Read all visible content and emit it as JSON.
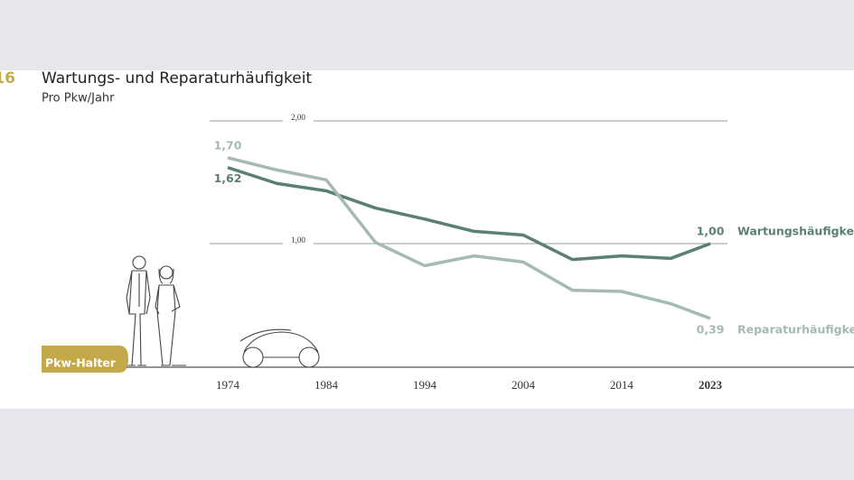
{
  "chart_data": {
    "type": "line",
    "figure_number": "16",
    "title": "Wartungs- und Reparaturhäufigkeit",
    "subtitle": "Pro Pkw/Jahr",
    "annotation": "Pkw-Halter",
    "x": [
      1974,
      1979,
      1984,
      1989,
      1994,
      1999,
      2004,
      2009,
      2014,
      2019,
      2023
    ],
    "xlim": [
      1974,
      2023
    ],
    "xticks": [
      1974,
      1984,
      1994,
      2004,
      2014,
      2023
    ],
    "ylim": [
      0,
      2
    ],
    "yticks": [
      {
        "value": 1,
        "label": "1,00"
      },
      {
        "value": 2,
        "label": "2,00"
      }
    ],
    "grid": true,
    "series": [
      {
        "name": "Wartungshäufigkeit",
        "color": "#5b7f74",
        "values": [
          1.62,
          1.49,
          1.43,
          1.29,
          1.2,
          1.1,
          1.07,
          0.87,
          0.9,
          0.88,
          1.0
        ],
        "value_labels": [
          "1,62",
          null,
          null,
          null,
          null,
          null,
          null,
          null,
          null,
          null,
          "1,00"
        ]
      },
      {
        "name": "Reparaturhäufigkeit",
        "color": "#a5bab6",
        "values": [
          1.7,
          1.6,
          1.52,
          1.01,
          0.82,
          0.9,
          0.85,
          0.62,
          0.61,
          0.51,
          0.39
        ],
        "value_labels": [
          "1,70",
          null,
          null,
          null,
          null,
          null,
          null,
          null,
          null,
          null,
          "0,39"
        ]
      }
    ]
  }
}
